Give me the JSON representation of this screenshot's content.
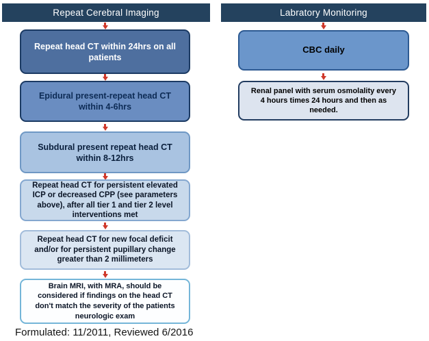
{
  "diagram": {
    "columns": {
      "left": {
        "header": "Repeat Cerebral Imaging",
        "boxes": [
          {
            "text": "Repeat head CT within 24hrs on all\npatients",
            "fill": "#4e6f9f"
          },
          {
            "text": "Epidural present-repeat head CT\nwithin 4-6hrs",
            "fill": "#6a8dc1"
          },
          {
            "text": "Subdural present repeat head CT\nwithin 8-12hrs",
            "fill": "#a9c3e1"
          },
          {
            "text": "Repeat head CT for persistent elevated\nICP or decreased CPP (see parameters\nabove), after all tier 1 and tier 2 level\ninterventions met",
            "fill": "#c8d9eb"
          },
          {
            "text": "Repeat head CT for new focal deficit\nand/or for persistent pupillary change\ngreater than 2 millimeters",
            "fill": "#dbe6f2"
          },
          {
            "text": "Brain MRI, with MRA, should be\nconsidered if findings on the head CT\ndon't match the severity of the patients\nneurologic exam",
            "fill": "#fdfeff"
          }
        ]
      },
      "right": {
        "header": "Labratory Monitoring",
        "boxes": [
          {
            "text": "CBC daily",
            "fill": "#6b96cb"
          },
          {
            "text": "Renal panel with serum osmolality every\n4 hours times 24 hours and then as\nneeded.",
            "fill": "#dde4ef"
          }
        ]
      }
    },
    "footer": "Formulated: 11/2011, Reviewed 6/2016",
    "colors": {
      "header_bg": "#24425e",
      "header_text": "#ffffff",
      "arrow": "#cf392b"
    }
  }
}
